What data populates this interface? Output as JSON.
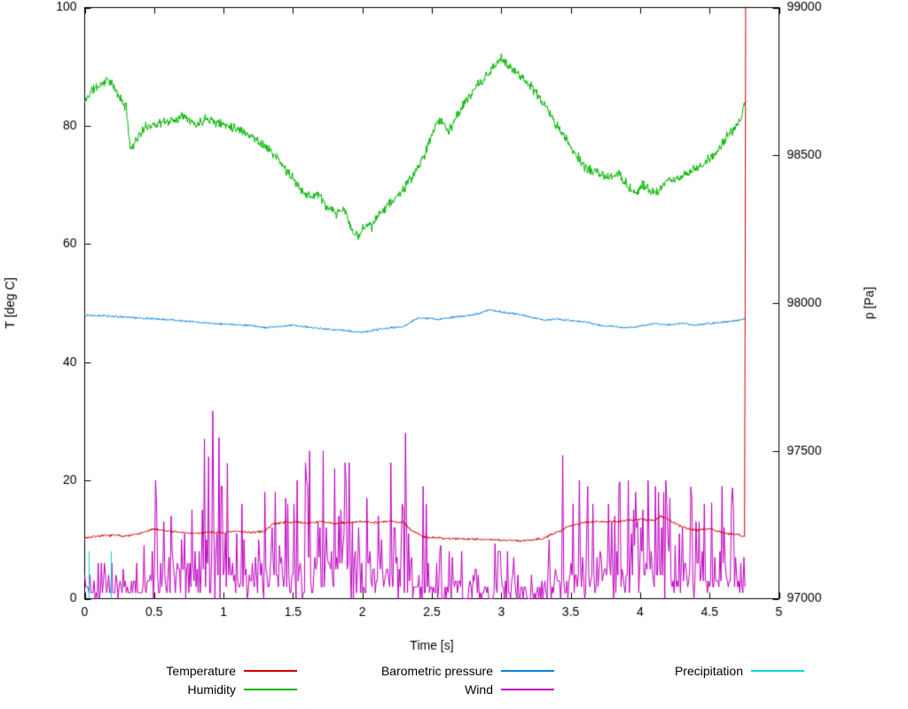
{
  "page": {
    "background": "#ffffff"
  },
  "chart_data": {
    "type": "line",
    "title": "",
    "xlabel": "Time [s]",
    "ylabel": "T [deg C]",
    "y2label": "p [Pa]",
    "xlim": [
      0,
      5
    ],
    "ylim": [
      0,
      100
    ],
    "y2lim": [
      97000,
      99000
    ],
    "x_end": 4.76,
    "grid": false,
    "legend_position": "below",
    "axis_color": "#000000",
    "x_ticks": {
      "positions": [
        0,
        0.5,
        1,
        1.5,
        2,
        2.5,
        3,
        3.5,
        4,
        4.5,
        5
      ],
      "labels": [
        "0",
        "0.5",
        "1",
        "1.5",
        "2",
        "2.5",
        "3",
        "3.5",
        "4",
        "4.5",
        "5"
      ]
    },
    "y_ticks": {
      "positions": [
        0,
        20,
        40,
        60,
        80,
        100
      ],
      "labels": [
        "0",
        "20",
        "40",
        "60",
        "80",
        "100"
      ]
    },
    "y2_ticks": {
      "positions": [
        97000,
        97500,
        98000,
        98500,
        99000
      ],
      "labels": [
        "97000",
        "97500",
        "98000",
        "98500",
        "99000"
      ]
    },
    "legend_order": [
      0,
      2,
      4,
      1,
      3
    ],
    "series": [
      {
        "name": "Temperature",
        "color": "#d40000",
        "axis": "y1",
        "style": "noisy-line",
        "noise": 0.25,
        "seed": 7,
        "keypoints": [
          [
            0,
            10.3
          ],
          [
            0.1,
            10.6
          ],
          [
            0.2,
            10.7
          ],
          [
            0.3,
            10.6
          ],
          [
            0.4,
            11.0
          ],
          [
            0.5,
            11.8
          ],
          [
            0.55,
            11.6
          ],
          [
            0.7,
            11.2
          ],
          [
            0.8,
            11.0
          ],
          [
            0.9,
            11.3
          ],
          [
            1.0,
            11.1
          ],
          [
            1.1,
            11.4
          ],
          [
            1.2,
            11.2
          ],
          [
            1.3,
            11.4
          ],
          [
            1.35,
            12.6
          ],
          [
            1.45,
            13.0
          ],
          [
            1.6,
            12.8
          ],
          [
            1.7,
            13.0
          ],
          [
            1.8,
            12.7
          ],
          [
            1.9,
            12.9
          ],
          [
            2.0,
            13.0
          ],
          [
            2.1,
            12.9
          ],
          [
            2.2,
            13.1
          ],
          [
            2.3,
            12.9
          ],
          [
            2.35,
            11.6
          ],
          [
            2.45,
            10.4
          ],
          [
            2.6,
            10.2
          ],
          [
            2.8,
            10.1
          ],
          [
            3.0,
            9.9
          ],
          [
            3.15,
            9.8
          ],
          [
            3.3,
            10.2
          ],
          [
            3.4,
            11.2
          ],
          [
            3.5,
            12.4
          ],
          [
            3.6,
            12.9
          ],
          [
            3.7,
            13.1
          ],
          [
            3.8,
            13.0
          ],
          [
            3.9,
            13.2
          ],
          [
            4.0,
            13.4
          ],
          [
            4.1,
            13.2
          ],
          [
            4.15,
            14.0
          ],
          [
            4.2,
            13.4
          ],
          [
            4.3,
            12.1
          ],
          [
            4.4,
            11.6
          ],
          [
            4.5,
            11.9
          ],
          [
            4.6,
            11.1
          ],
          [
            4.7,
            10.9
          ],
          [
            4.753,
            10.4
          ],
          [
            4.76,
            100
          ]
        ]
      },
      {
        "name": "Humidity",
        "color": "#00b400",
        "axis": "y1",
        "style": "noisy-line",
        "noise": 1.0,
        "seed": 11,
        "keypoints": [
          [
            0,
            84
          ],
          [
            0.05,
            86
          ],
          [
            0.12,
            87
          ],
          [
            0.17,
            88
          ],
          [
            0.22,
            86
          ],
          [
            0.3,
            83
          ],
          [
            0.33,
            76
          ],
          [
            0.38,
            78
          ],
          [
            0.45,
            80
          ],
          [
            0.55,
            80.5
          ],
          [
            0.65,
            81
          ],
          [
            0.72,
            82
          ],
          [
            0.8,
            80
          ],
          [
            0.88,
            81.5
          ],
          [
            0.95,
            80.5
          ],
          [
            1.05,
            80
          ],
          [
            1.15,
            79
          ],
          [
            1.25,
            77.5
          ],
          [
            1.35,
            75.5
          ],
          [
            1.45,
            72.5
          ],
          [
            1.55,
            69.5
          ],
          [
            1.62,
            68
          ],
          [
            1.68,
            68.5
          ],
          [
            1.75,
            66
          ],
          [
            1.82,
            65
          ],
          [
            1.87,
            66
          ],
          [
            1.92,
            62.5
          ],
          [
            1.97,
            61
          ],
          [
            2.02,
            63.5
          ],
          [
            2.07,
            63
          ],
          [
            2.15,
            66
          ],
          [
            2.25,
            68
          ],
          [
            2.35,
            71
          ],
          [
            2.45,
            75
          ],
          [
            2.52,
            80
          ],
          [
            2.57,
            81
          ],
          [
            2.62,
            79
          ],
          [
            2.7,
            82.5
          ],
          [
            2.8,
            86
          ],
          [
            2.9,
            88.5
          ],
          [
            3.0,
            91.5
          ],
          [
            3.05,
            90
          ],
          [
            3.12,
            89
          ],
          [
            3.2,
            87
          ],
          [
            3.3,
            84
          ],
          [
            3.4,
            80
          ],
          [
            3.5,
            76.5
          ],
          [
            3.6,
            73
          ],
          [
            3.7,
            72
          ],
          [
            3.78,
            71
          ],
          [
            3.85,
            72
          ],
          [
            3.92,
            69.5
          ],
          [
            3.97,
            68.5
          ],
          [
            4.02,
            70
          ],
          [
            4.08,
            69
          ],
          [
            4.13,
            68.5
          ],
          [
            4.18,
            70.5
          ],
          [
            4.25,
            71
          ],
          [
            4.35,
            72
          ],
          [
            4.45,
            73.5
          ],
          [
            4.55,
            75.5
          ],
          [
            4.62,
            78
          ],
          [
            4.68,
            79.5
          ],
          [
            4.73,
            81
          ],
          [
            4.76,
            84.5
          ]
        ]
      },
      {
        "name": "Barometric pressure",
        "color": "#0080e0",
        "axis": "y2",
        "style": "noisy-line",
        "noise": 4,
        "seed": 13,
        "keypoints": [
          [
            0,
            97960
          ],
          [
            0.15,
            97957
          ],
          [
            0.3,
            97952
          ],
          [
            0.45,
            97948
          ],
          [
            0.6,
            97944
          ],
          [
            0.75,
            97938
          ],
          [
            0.9,
            97932
          ],
          [
            1.05,
            97928
          ],
          [
            1.2,
            97924
          ],
          [
            1.3,
            97916
          ],
          [
            1.4,
            97921
          ],
          [
            1.5,
            97925
          ],
          [
            1.6,
            97919
          ],
          [
            1.7,
            97914
          ],
          [
            1.8,
            97910
          ],
          [
            1.9,
            97906
          ],
          [
            2.0,
            97901
          ],
          [
            2.1,
            97910
          ],
          [
            2.2,
            97916
          ],
          [
            2.3,
            97921
          ],
          [
            2.38,
            97946
          ],
          [
            2.45,
            97950
          ],
          [
            2.55,
            97945
          ],
          [
            2.65,
            97952
          ],
          [
            2.75,
            97957
          ],
          [
            2.85,
            97966
          ],
          [
            2.92,
            97978
          ],
          [
            3.0,
            97970
          ],
          [
            3.1,
            97964
          ],
          [
            3.2,
            97955
          ],
          [
            3.3,
            97942
          ],
          [
            3.4,
            97946
          ],
          [
            3.5,
            97941
          ],
          [
            3.6,
            97936
          ],
          [
            3.7,
            97926
          ],
          [
            3.8,
            97921
          ],
          [
            3.9,
            97916
          ],
          [
            4.0,
            97921
          ],
          [
            4.1,
            97931
          ],
          [
            4.2,
            97926
          ],
          [
            4.3,
            97931
          ],
          [
            4.4,
            97926
          ],
          [
            4.5,
            97931
          ],
          [
            4.6,
            97936
          ],
          [
            4.7,
            97941
          ],
          [
            4.76,
            97948
          ]
        ]
      },
      {
        "name": "Wind",
        "color": "#c000c0",
        "axis": "y1",
        "style": "spiky",
        "seed": 5,
        "base": [
          [
            0,
            3
          ],
          [
            0.4,
            3
          ],
          [
            0.5,
            6
          ],
          [
            0.9,
            7
          ],
          [
            1.1,
            5
          ],
          [
            1.5,
            6
          ],
          [
            2.0,
            7
          ],
          [
            2.3,
            6
          ],
          [
            2.45,
            3
          ],
          [
            2.55,
            2
          ],
          [
            3.3,
            2
          ],
          [
            3.4,
            5
          ],
          [
            3.6,
            6
          ],
          [
            4.0,
            6
          ],
          [
            4.4,
            5
          ],
          [
            4.76,
            4
          ]
        ],
        "peaks": [
          [
            0,
            6
          ],
          [
            0.38,
            6
          ],
          [
            0.45,
            16
          ],
          [
            0.55,
            24
          ],
          [
            0.65,
            20
          ],
          [
            0.78,
            28
          ],
          [
            0.9,
            34
          ],
          [
            1.0,
            24
          ],
          [
            1.1,
            20
          ],
          [
            1.2,
            18
          ],
          [
            1.35,
            20
          ],
          [
            1.5,
            23
          ],
          [
            1.62,
            25
          ],
          [
            1.72,
            26
          ],
          [
            1.8,
            22
          ],
          [
            1.9,
            24
          ],
          [
            2.0,
            30
          ],
          [
            2.1,
            26
          ],
          [
            2.2,
            29
          ],
          [
            2.32,
            28
          ],
          [
            2.42,
            24
          ],
          [
            2.5,
            10
          ],
          [
            2.65,
            8
          ],
          [
            2.85,
            10
          ],
          [
            3.0,
            9
          ],
          [
            3.2,
            8
          ],
          [
            3.32,
            12
          ],
          [
            3.45,
            25
          ],
          [
            3.55,
            21
          ],
          [
            3.68,
            18
          ],
          [
            3.78,
            16
          ],
          [
            3.9,
            22
          ],
          [
            4.0,
            20
          ],
          [
            4.12,
            23
          ],
          [
            4.22,
            22
          ],
          [
            4.32,
            18
          ],
          [
            4.42,
            20
          ],
          [
            4.52,
            16
          ],
          [
            4.62,
            21
          ],
          [
            4.7,
            17
          ],
          [
            4.76,
            13
          ]
        ]
      },
      {
        "name": "Precipitation",
        "color": "#00d8d8",
        "axis": "y1",
        "style": "impulses",
        "impulses": [
          [
            0.03,
            8
          ],
          [
            0.19,
            8
          ]
        ]
      }
    ]
  }
}
